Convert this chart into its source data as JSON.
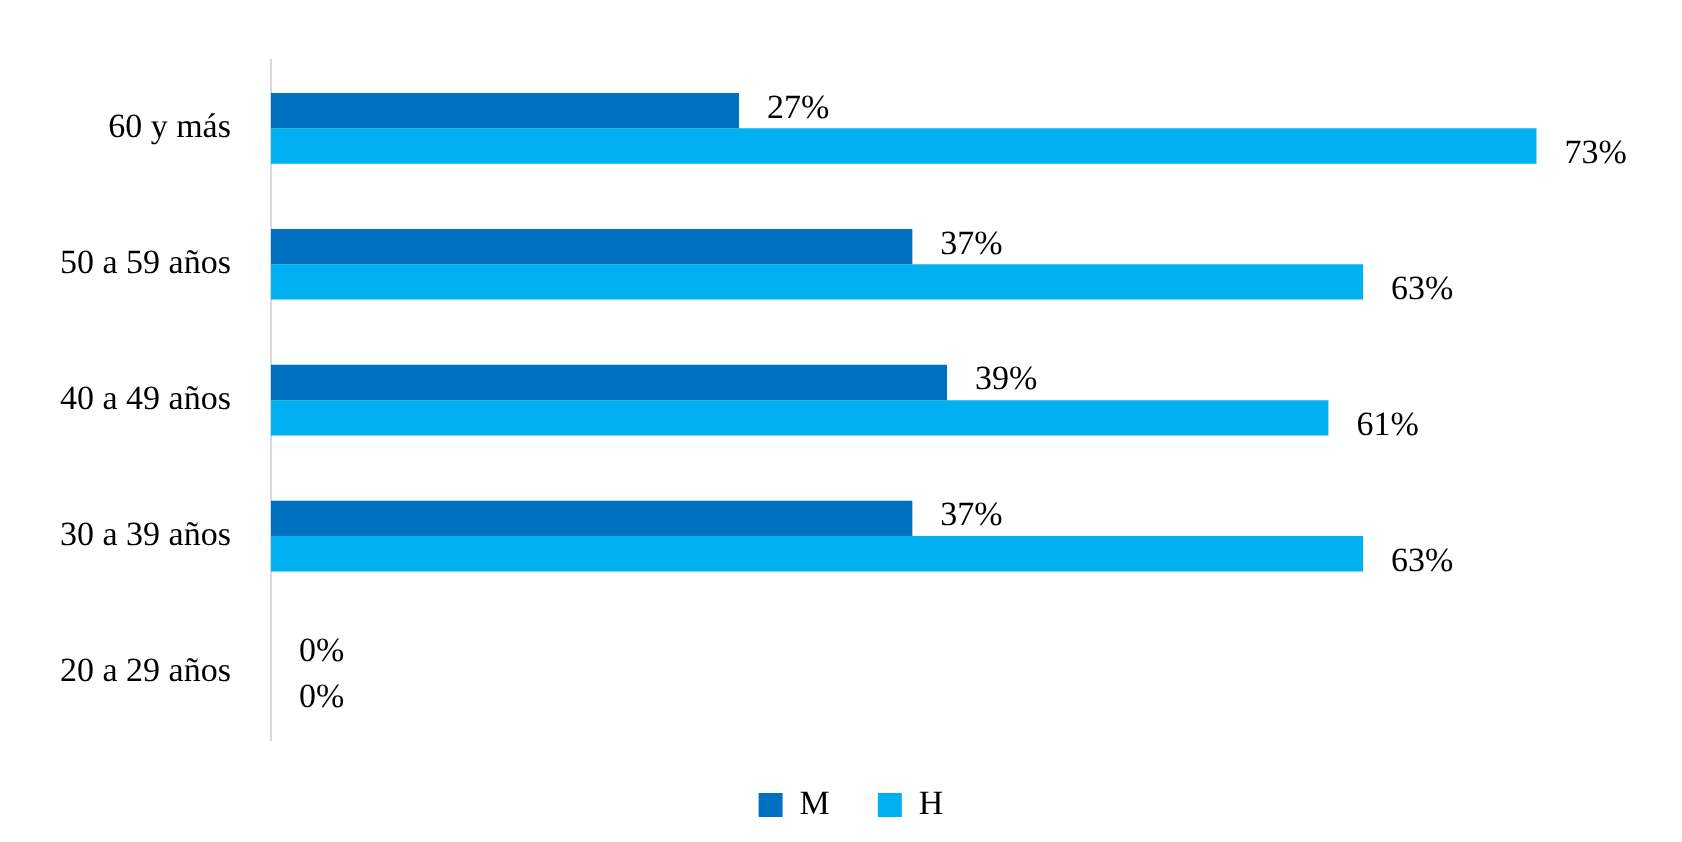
{
  "chart_data": {
    "type": "bar",
    "orientation": "horizontal",
    "categories": [
      "60 y más",
      "50 a 59 años",
      "40 a 49 años",
      "30 a 39 años",
      "20 a 29 años"
    ],
    "series": [
      {
        "name": "M",
        "color": "#0070c0",
        "values": [
          27,
          37,
          39,
          37,
          0
        ],
        "value_labels": [
          "27%",
          "37%",
          "39%",
          "37%",
          "0%"
        ]
      },
      {
        "name": "H",
        "color": "#00b0f0",
        "values": [
          73,
          63,
          61,
          63,
          0
        ],
        "value_labels": [
          "73%",
          "63%",
          "61%",
          "63%",
          "0%"
        ]
      }
    ],
    "legend": "bottom"
  }
}
